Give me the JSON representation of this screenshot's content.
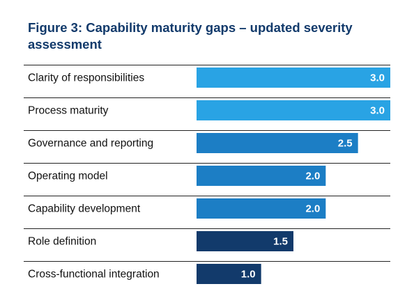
{
  "title": "Figure 3: Capability maturity gaps – updated severity assessment",
  "chart_data": {
    "type": "bar",
    "orientation": "horizontal",
    "title": "Figure 3: Capability maturity gaps – updated severity assessment",
    "categories": [
      "Clarity of responsibilities",
      "Process maturity",
      "Governance and reporting",
      "Operating model",
      "Capability development",
      "Role definition",
      "Cross-functional integration"
    ],
    "values": [
      3.0,
      3.0,
      2.5,
      2.0,
      2.0,
      1.5,
      1.0
    ],
    "value_labels": [
      "3.0",
      "3.0",
      "2.5",
      "2.0",
      "2.0",
      "1.5",
      "1.0"
    ],
    "bar_colors": [
      "#29a3e4",
      "#29a3e4",
      "#1c7ec5",
      "#1c7ec5",
      "#1c7ec5",
      "#123a6b",
      "#123a6b"
    ],
    "xlim": [
      0,
      3.0
    ],
    "grid": false,
    "legend": "none",
    "row_separators": true
  },
  "colors": {
    "title": "#123a6b",
    "separator": "#222222",
    "light_blue": "#29a3e4",
    "mid_blue": "#1c7ec5",
    "dark_navy": "#123a6b"
  }
}
